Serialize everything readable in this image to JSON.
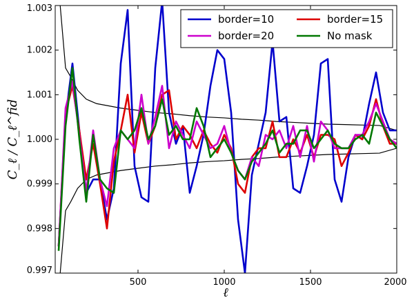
{
  "chart_data": {
    "type": "line",
    "xlabel": "ℓ",
    "ylabel": "C_ℓ / C_ℓ^fid",
    "xlim": [
      20,
      2000
    ],
    "ylim": [
      0.997,
      1.003
    ],
    "x_ticks": [
      500,
      1000,
      1500,
      2000
    ],
    "x_tick_labels": [
      "500",
      "1000",
      "1500",
      "2000"
    ],
    "y_ticks": [
      0.997,
      0.998,
      0.999,
      1.0,
      1.001,
      1.002,
      1.003
    ],
    "y_tick_labels": [
      "0.997",
      "0.998",
      "0.999",
      "1.000",
      "1.001",
      "1.002",
      "1.003"
    ],
    "grid": false,
    "legend_position": "top-right",
    "x": [
      40,
      80,
      120,
      160,
      200,
      240,
      280,
      320,
      360,
      400,
      440,
      480,
      520,
      560,
      600,
      640,
      680,
      720,
      760,
      800,
      840,
      880,
      920,
      960,
      1000,
      1040,
      1080,
      1120,
      1160,
      1200,
      1240,
      1280,
      1320,
      1360,
      1400,
      1440,
      1480,
      1520,
      1560,
      1600,
      1640,
      1680,
      1720,
      1760,
      1800,
      1840,
      1880,
      1920,
      1960,
      2000
    ],
    "series": [
      {
        "name": "border=10",
        "color": "#0000cc",
        "values": [
          0.9976,
          1.0005,
          1.0017,
          1.0002,
          0.9988,
          0.9991,
          0.9991,
          0.9982,
          0.9989,
          1.0017,
          1.0029,
          0.9994,
          0.9987,
          0.9986,
          1.0016,
          1.0031,
          1.0006,
          0.9999,
          1.0003,
          0.9988,
          0.9994,
          1.0001,
          1.0012,
          1.002,
          1.0018,
          1.0006,
          0.9982,
          0.997,
          0.9992,
          0.9999,
          1.0006,
          1.0022,
          1.0004,
          1.0005,
          0.9989,
          0.9988,
          0.9994,
          1.0001,
          1.0017,
          1.0018,
          0.9991,
          0.9986,
          0.9996,
          1.0001,
          1.0,
          1.0008,
          1.0015,
          1.0006,
          1.0002,
          1.0002
        ]
      },
      {
        "name": "border=15",
        "color": "#dd0000",
        "values": [
          0.9976,
          1.0006,
          1.0012,
          1.0002,
          0.9991,
          0.9999,
          0.999,
          0.998,
          0.9995,
          1.0002,
          1.001,
          0.9997,
          1.0006,
          0.9999,
          1.0003,
          1.001,
          1.0011,
          1.0,
          1.0003,
          1.0001,
          0.9998,
          1.0002,
          0.9999,
          0.9997,
          1.0001,
          0.9998,
          0.999,
          0.9988,
          0.9996,
          0.9998,
          0.9998,
          1.0004,
          0.9996,
          0.9996,
          1.0,
          0.9997,
          1.0001,
          0.9996,
          1.0001,
          1.0001,
          1.0,
          0.9994,
          0.9997,
          1.0001,
          1.0,
          1.0003,
          1.0009,
          1.0003,
          0.9999,
          0.9999
        ]
      },
      {
        "name": "border=20",
        "color": "#cc00cc",
        "values": [
          0.9976,
          1.0007,
          1.0013,
          1.0001,
          0.9988,
          1.0002,
          0.9991,
          0.9985,
          0.9998,
          1.0002,
          1.0,
          0.9998,
          1.001,
          0.9999,
          1.0005,
          1.0012,
          0.9998,
          1.0004,
          1.0001,
          0.9998,
          1.0004,
          1.0001,
          0.9998,
          0.9999,
          1.0003,
          0.9997,
          0.9993,
          0.9991,
          0.9996,
          0.9994,
          1.0001,
          1.0,
          1.0002,
          0.9998,
          1.0003,
          0.9996,
          1.0003,
          0.9995,
          1.0004,
          1.0002,
          0.9998,
          0.9998,
          0.9998,
          1.0001,
          1.0001,
          1.0004,
          1.0008,
          1.0004,
          1.0,
          0.9999
        ]
      },
      {
        "name": "No mask",
        "color": "#007700",
        "values": [
          0.9975,
          1.0003,
          1.0016,
          1.0,
          0.9986,
          1.0001,
          0.9991,
          0.9989,
          0.9988,
          1.0002,
          1.0,
          1.0002,
          1.0007,
          1.0,
          1.0003,
          1.0009,
          1.0001,
          1.0003,
          1.0,
          1.0,
          1.0007,
          1.0003,
          0.9996,
          0.9998,
          1.0,
          0.9997,
          0.9993,
          0.9991,
          0.9995,
          0.9997,
          0.9999,
          1.0002,
          0.9997,
          0.9999,
          0.9999,
          1.0002,
          1.0002,
          0.9998,
          1.0,
          1.0002,
          0.9999,
          0.9998,
          0.9998,
          1.0,
          1.0001,
          0.9999,
          1.0006,
          1.0003,
          1.0,
          0.9998
        ]
      }
    ],
    "envelope": {
      "color": "#000000",
      "x": [
        40,
        60,
        80,
        110,
        150,
        200,
        260,
        330,
        400,
        500,
        600,
        700,
        800,
        900,
        1000,
        1100,
        1200,
        1300,
        1400,
        1500,
        1600,
        1700,
        1800,
        1900,
        2000
      ],
      "upper": [
        1.0034,
        1.0025,
        1.0016,
        1.0014,
        1.0011,
        1.0009,
        1.0008,
        1.00075,
        1.0007,
        1.00065,
        1.0006,
        1.00057,
        1.00053,
        1.0005,
        1.00048,
        1.00045,
        1.00043,
        1.0004,
        1.00038,
        1.00036,
        1.00034,
        1.00033,
        1.00032,
        1.00031,
        1.0002
      ],
      "lower": [
        0.9966,
        0.9975,
        0.9984,
        0.9986,
        0.9989,
        0.9991,
        0.9992,
        0.99925,
        0.9993,
        0.99935,
        0.9994,
        0.99943,
        0.99947,
        0.9995,
        0.99952,
        0.99955,
        0.99957,
        0.9996,
        0.99962,
        0.99964,
        0.99966,
        0.99967,
        0.99968,
        0.99969,
        0.9998
      ]
    }
  }
}
